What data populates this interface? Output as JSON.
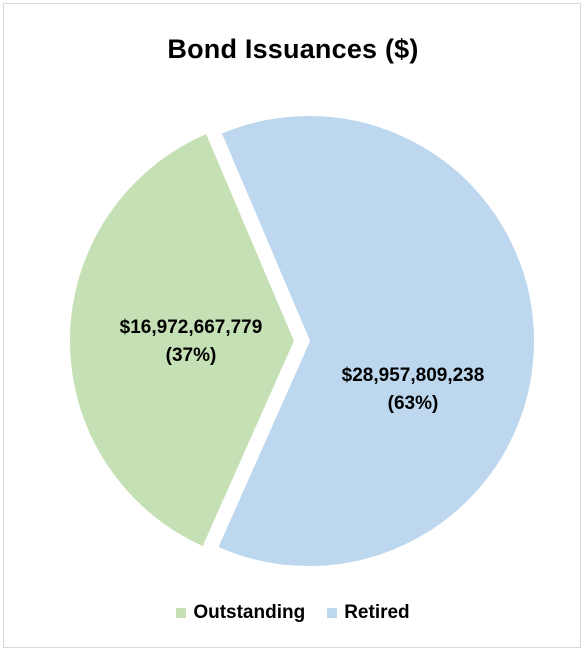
{
  "chart_data": {
    "type": "pie",
    "title": "Bond Issuances ($)",
    "slices": [
      {
        "name": "Outstanding",
        "value": 16972667779,
        "value_label": "$16,972,667,779",
        "percent_label": "(37%)",
        "color": "#c5e0b4",
        "exploded": true
      },
      {
        "name": "Retired",
        "value": 28957809238,
        "value_label": "$28,957,809,238",
        "percent_label": "(63%)",
        "color": "#bdd7ee",
        "exploded": false
      }
    ],
    "legend_position": "bottom"
  }
}
